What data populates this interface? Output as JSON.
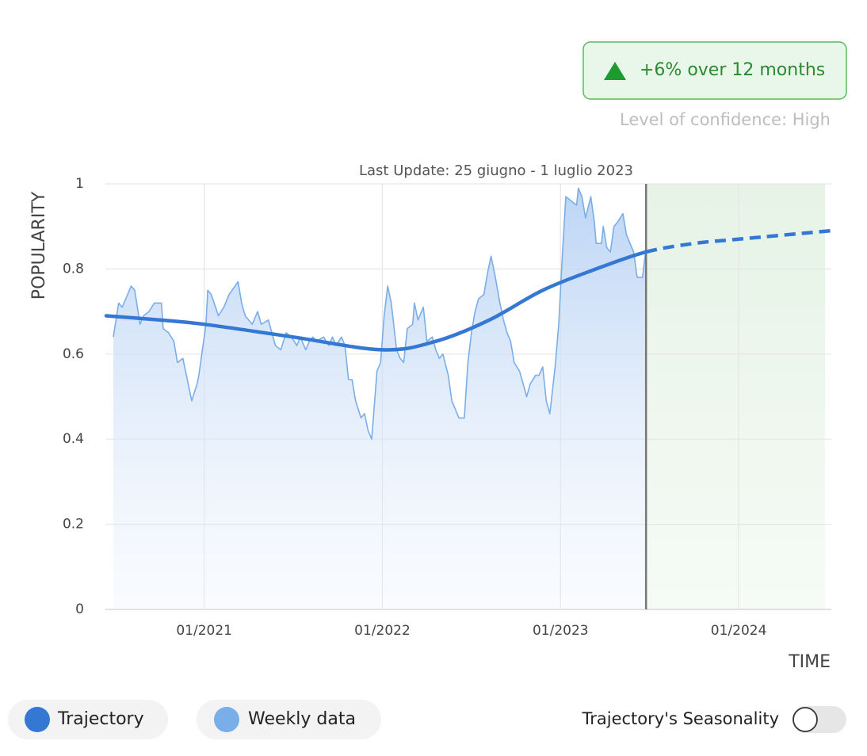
{
  "chart_data": {
    "type": "line",
    "badge": "+6% over 12 months",
    "confidence": "Level of confidence: High",
    "subtitle": "Last Update: 25 giugno - 1 luglio 2023",
    "y_label": "POPULARITY",
    "x_label": "TIME",
    "toggle_label": "Trajectory's Seasonality",
    "xlim": [
      2020.45,
      2024.52
    ],
    "xticks": [
      {
        "value": 2021,
        "label": "01/2021"
      },
      {
        "value": 2022,
        "label": "01/2022"
      },
      {
        "value": 2023,
        "label": "01/2023"
      },
      {
        "value": 2024,
        "label": "01/2024"
      }
    ],
    "ylim": [
      0,
      1
    ],
    "yticks": [
      0,
      0.2,
      0.4,
      0.6,
      0.8,
      1
    ],
    "grid": true,
    "forecast_start": 2023.48,
    "series": [
      {
        "name": "Trajectory",
        "color": "#3478d4",
        "x": [
          2020.45,
          2020.75,
          2021.0,
          2021.5,
          2022.0,
          2022.3,
          2022.6,
          2022.9,
          2023.2,
          2023.48,
          2023.75,
          2024.0,
          2024.52
        ],
        "values": [
          0.69,
          0.68,
          0.67,
          0.64,
          0.61,
          0.63,
          0.68,
          0.75,
          0.8,
          0.84,
          0.86,
          0.87,
          0.89
        ]
      },
      {
        "name": "Weekly data",
        "color": "#7aaee8",
        "x": [
          2020.49,
          2020.52,
          2020.54,
          2020.56,
          2020.59,
          2020.61,
          2020.64,
          2020.66,
          2020.69,
          2020.72,
          2020.74,
          2020.76,
          2020.77,
          2020.8,
          2020.83,
          2020.85,
          2020.88,
          2020.9,
          2020.92,
          2020.93,
          2020.96,
          2020.97,
          2020.99,
          2021.01,
          2021.02,
          2021.04,
          2021.08,
          2021.11,
          2021.14,
          2021.19,
          2021.21,
          2021.23,
          2021.27,
          2021.3,
          2021.32,
          2021.36,
          2021.4,
          2021.43,
          2021.46,
          2021.49,
          2021.52,
          2021.54,
          2021.57,
          2021.59,
          2021.61,
          2021.63,
          2021.67,
          2021.7,
          2021.72,
          2021.74,
          2021.77,
          2021.79,
          2021.81,
          2021.83,
          2021.85,
          2021.88,
          2021.9,
          2021.92,
          2021.94,
          2021.97,
          2021.99,
          2022.01,
          2022.03,
          2022.05,
          2022.08,
          2022.1,
          2022.12,
          2022.14,
          2022.17,
          2022.18,
          2022.2,
          2022.23,
          2022.25,
          2022.28,
          2022.3,
          2022.32,
          2022.34,
          2022.37,
          2022.39,
          2022.41,
          2022.43,
          2022.46,
          2022.48,
          2022.5,
          2022.52,
          2022.54,
          2022.57,
          2022.59,
          2022.61,
          2022.63,
          2022.66,
          2022.68,
          2022.7,
          2022.72,
          2022.74,
          2022.77,
          2022.79,
          2022.81,
          2022.83,
          2022.86,
          2022.88,
          2022.9,
          2022.92,
          2022.94,
          2022.97,
          2022.99,
          2023.01,
          2023.03,
          2023.06,
          2023.09,
          2023.1,
          2023.12,
          2023.14,
          2023.17,
          2023.19,
          2023.2,
          2023.23,
          2023.24,
          2023.26,
          2023.28,
          2023.3,
          2023.32,
          2023.35,
          2023.37,
          2023.39,
          2023.41,
          2023.43,
          2023.46,
          2023.48
        ],
        "values": [
          0.64,
          0.72,
          0.71,
          0.73,
          0.76,
          0.75,
          0.67,
          0.69,
          0.7,
          0.72,
          0.72,
          0.72,
          0.66,
          0.65,
          0.63,
          0.58,
          0.59,
          0.55,
          0.51,
          0.49,
          0.53,
          0.55,
          0.61,
          0.67,
          0.75,
          0.74,
          0.69,
          0.71,
          0.74,
          0.77,
          0.72,
          0.69,
          0.67,
          0.7,
          0.67,
          0.68,
          0.62,
          0.61,
          0.65,
          0.64,
          0.62,
          0.64,
          0.61,
          0.63,
          0.64,
          0.63,
          0.64,
          0.62,
          0.64,
          0.62,
          0.64,
          0.62,
          0.54,
          0.54,
          0.49,
          0.45,
          0.46,
          0.42,
          0.4,
          0.56,
          0.58,
          0.69,
          0.76,
          0.72,
          0.61,
          0.59,
          0.58,
          0.66,
          0.67,
          0.72,
          0.68,
          0.71,
          0.63,
          0.64,
          0.61,
          0.59,
          0.6,
          0.55,
          0.49,
          0.47,
          0.45,
          0.45,
          0.58,
          0.65,
          0.7,
          0.73,
          0.74,
          0.79,
          0.83,
          0.79,
          0.72,
          0.68,
          0.65,
          0.63,
          0.58,
          0.56,
          0.53,
          0.5,
          0.53,
          0.55,
          0.55,
          0.57,
          0.49,
          0.46,
          0.57,
          0.67,
          0.83,
          0.97,
          0.96,
          0.95,
          0.99,
          0.97,
          0.92,
          0.97,
          0.91,
          0.86,
          0.86,
          0.9,
          0.85,
          0.84,
          0.9,
          0.91,
          0.93,
          0.88,
          0.86,
          0.84,
          0.78,
          0.78,
          0.85
        ]
      }
    ]
  }
}
